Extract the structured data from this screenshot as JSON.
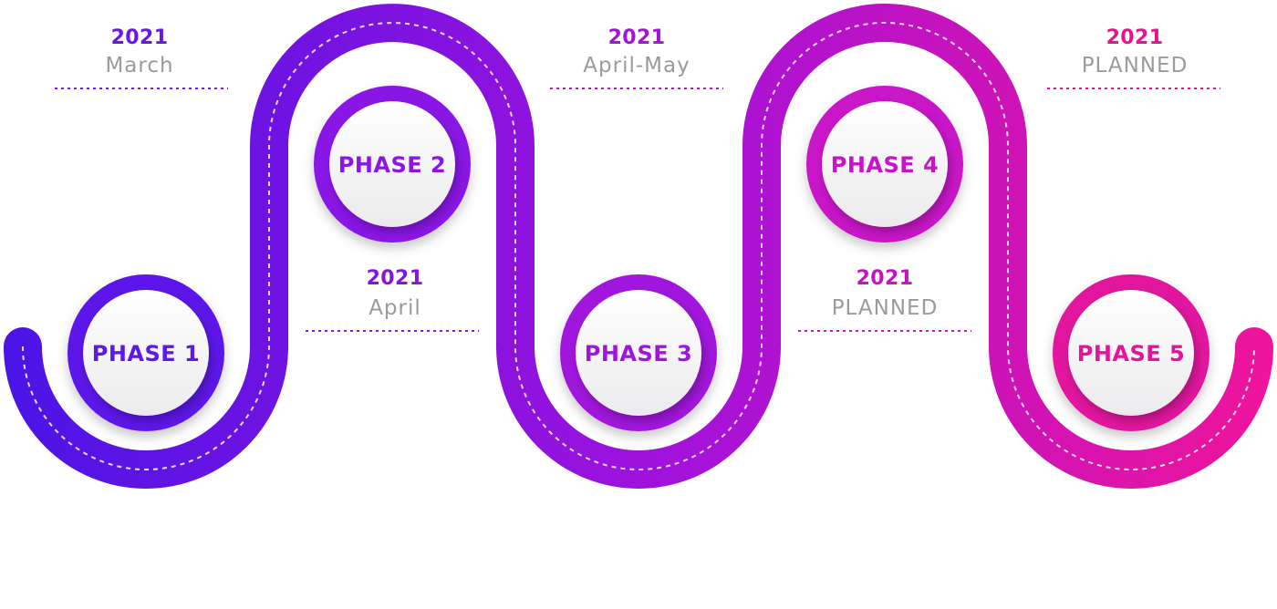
{
  "colors": {
    "gradient_start": "#4a14e6",
    "gradient_mid": "#a112dc",
    "gradient_end": "#f0149a",
    "label_muted": "#9b9b9b",
    "circle_face": "#f5f5f6",
    "dashed_line": "#ffffff"
  },
  "phases": [
    {
      "label": "PHASE 1",
      "color": "#5d18ea"
    },
    {
      "label": "PHASE 2",
      "color": "#8a15e6"
    },
    {
      "label": "PHASE 3",
      "color": "#a114dc"
    },
    {
      "label": "PHASE 4",
      "color": "#c913c8"
    },
    {
      "label": "PHASE 5",
      "color": "#e2149e"
    }
  ],
  "milestones": [
    {
      "year": "2021",
      "period": "March",
      "year_color": "#6a16e4"
    },
    {
      "year": "2021",
      "period": "April",
      "year_color": "#8414e0"
    },
    {
      "year": "2021",
      "period": "April-May",
      "year_color": "#a313d8"
    },
    {
      "year": "2021",
      "period": "PLANNED",
      "year_color": "#c612c4"
    },
    {
      "year": "2021",
      "period": "PLANNED",
      "year_color": "#e5148d"
    }
  ]
}
